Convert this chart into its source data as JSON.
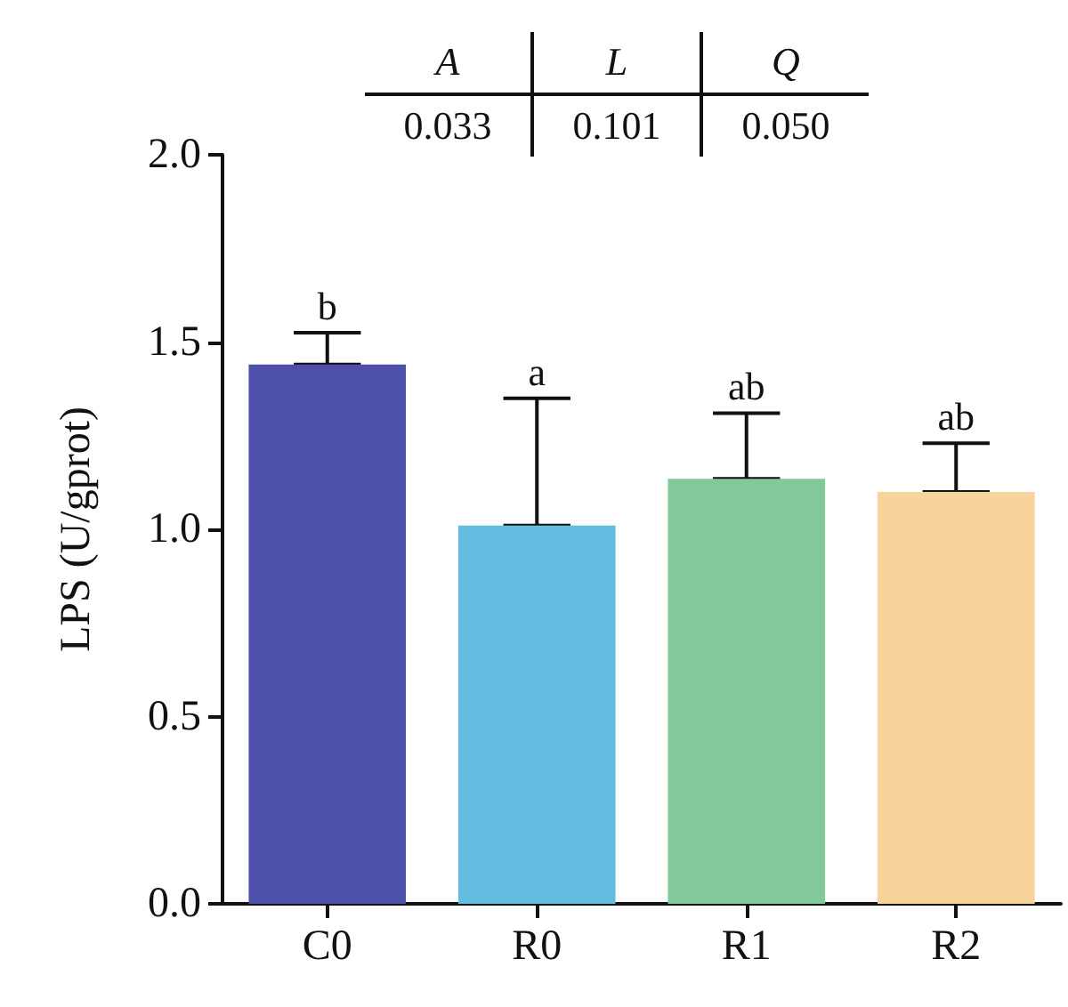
{
  "chart_data": {
    "type": "bar",
    "ylabel": "LPS (U/gprot)",
    "categories": [
      "C0",
      "R0",
      "R1",
      "R2"
    ],
    "values": [
      1.44,
      1.01,
      1.135,
      1.1
    ],
    "colors": [
      "#4e4fa8",
      "#62bde0",
      "#82c99a",
      "#f7d49c"
    ],
    "errors": [
      [
        1.44,
        1.525
      ],
      [
        1.01,
        1.35
      ],
      [
        1.135,
        1.31
      ],
      [
        1.1,
        1.23
      ]
    ],
    "ylim": [
      0,
      2
    ],
    "yticks": [
      {
        "value": 0,
        "label": "0.0"
      },
      {
        "value": 0.5,
        "label": "0.5"
      },
      {
        "value": 1,
        "label": "1.0"
      },
      {
        "value": 1.5,
        "label": "1.5"
      },
      {
        "value": 2,
        "label": "2.0"
      }
    ],
    "grid": false,
    "annotations": [
      "A",
      "L",
      "Q",
      "0.033",
      "0.101",
      "0.050",
      {
        "text": "b",
        "x": "C0",
        "y": 1.525
      },
      {
        "text": "a",
        "x": "R0",
        "y": 1.35
      },
      {
        "text": "ab",
        "x": "R1",
        "y": 1.31
      },
      {
        "text": "ab",
        "x": "R2",
        "y": 1.23
      }
    ]
  }
}
